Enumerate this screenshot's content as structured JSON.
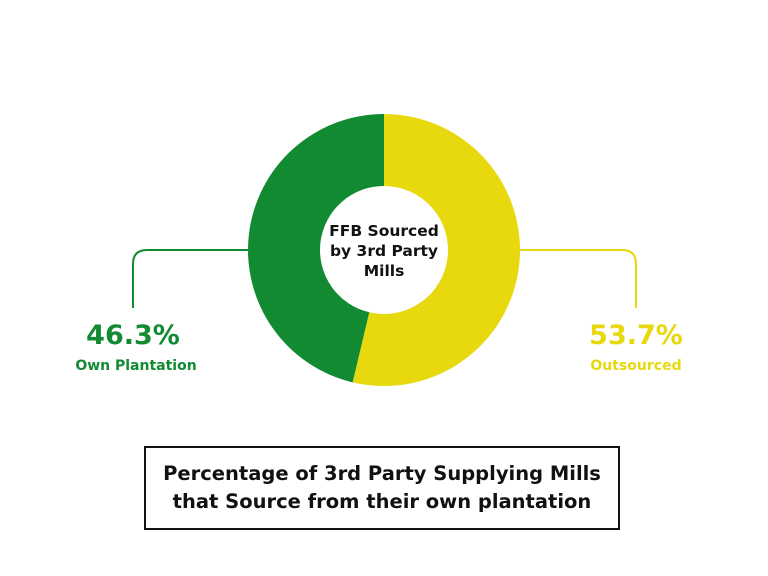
{
  "colors": {
    "own_plantation": "#118a32",
    "outsourced": "#e8d80e",
    "text": "#111111",
    "background": "#ffffff"
  },
  "chart_data": {
    "type": "pie",
    "variant": "donut",
    "center_label": [
      "FFB Sourced",
      "by 3rd Party",
      "Mills"
    ],
    "slices": [
      {
        "label": "Own Plantation",
        "value": 46.3,
        "display": "46.3%",
        "color": "#118a32",
        "label_side": "left"
      },
      {
        "label": "Outsourced",
        "value": 53.7,
        "display": "53.7%",
        "color": "#e8d80e",
        "label_side": "right"
      }
    ]
  },
  "caption": {
    "line1": "Percentage of 3rd Party Supplying Mills",
    "line2": "that Source from their own plantation"
  }
}
